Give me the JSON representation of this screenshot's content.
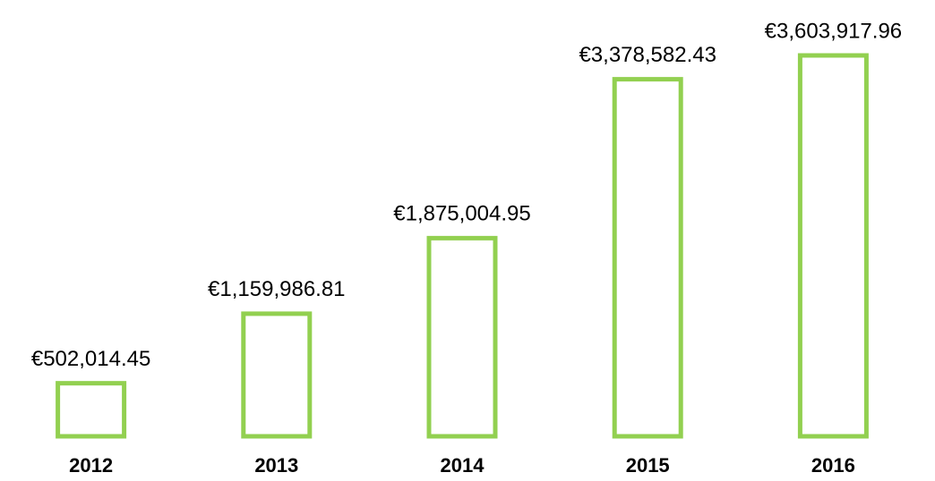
{
  "chart_data": {
    "type": "bar",
    "categories": [
      "2012",
      "2013",
      "2014",
      "2015",
      "2016"
    ],
    "values": [
      502014.45,
      1159986.81,
      1875004.95,
      3378582.43,
      3603917.96
    ],
    "value_labels": [
      "€502,014.45",
      "€1,159,986.81",
      "€1,875,004.95",
      "€3,378,582.43",
      "€3,603,917.96"
    ],
    "color": "#92d050"
  }
}
